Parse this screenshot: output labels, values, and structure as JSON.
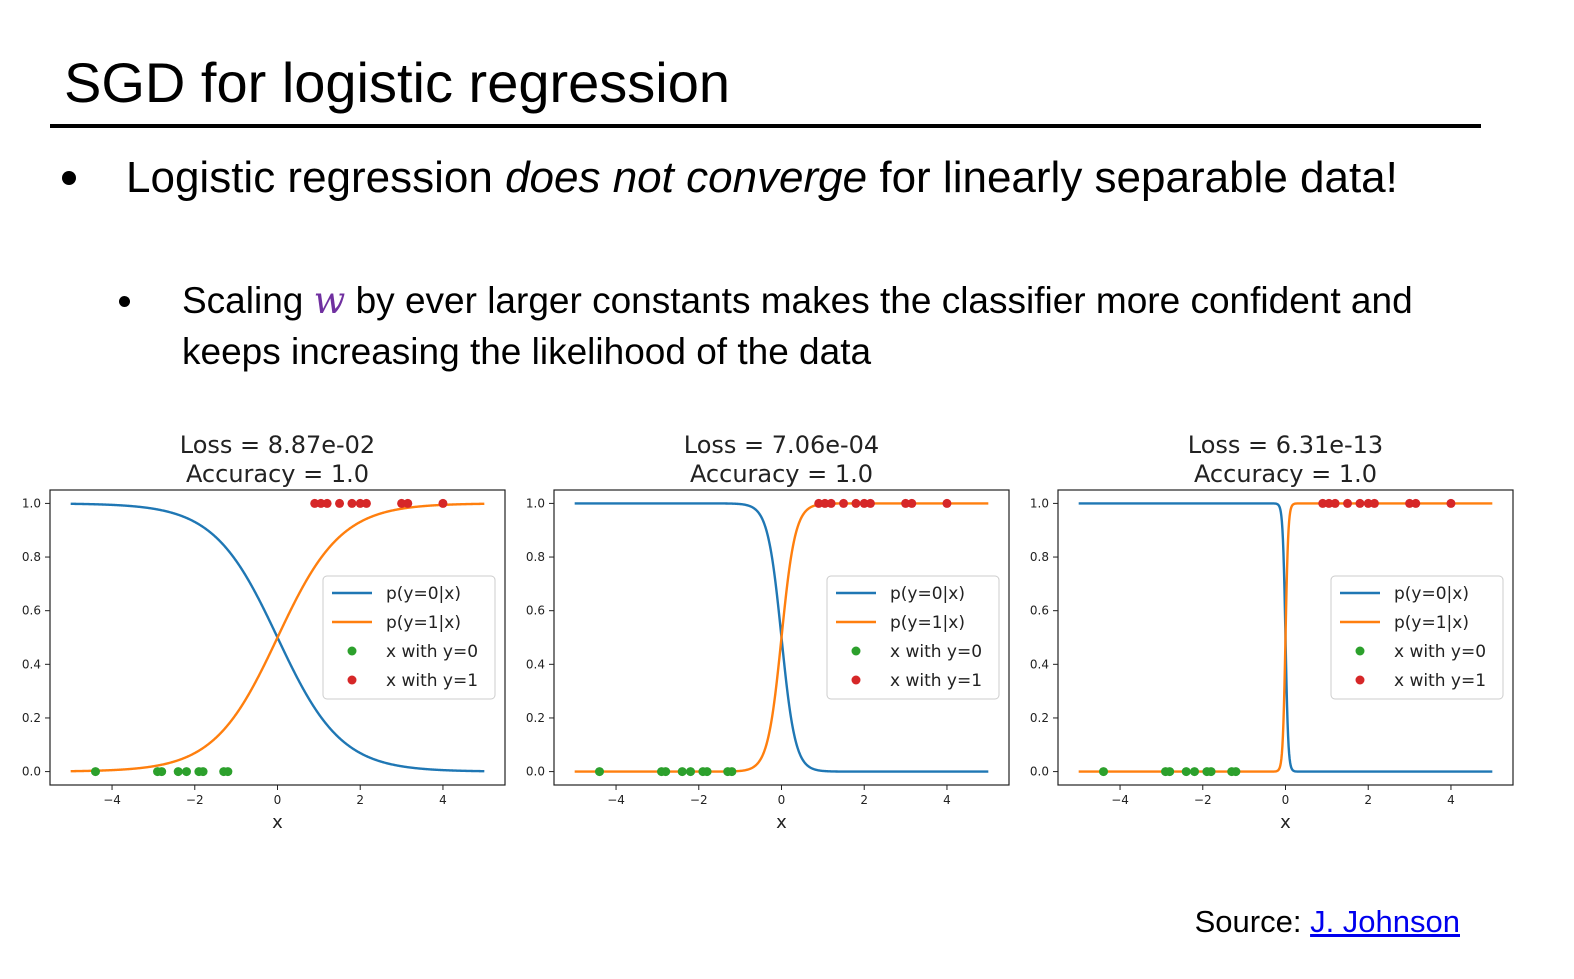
{
  "slide": {
    "title": "SGD for logistic regression",
    "bullet_1": {
      "before": "Logistic regression ",
      "emphasis": "does not converge",
      "after": " for linearly separable data!"
    },
    "bullet_2": {
      "before": "Scaling ",
      "variable": "w",
      "after": " by ever larger constants makes the classifier more confident and keeps increasing the likelihood of the data"
    },
    "source_label": "Source: ",
    "source_link_text": "J. Johnson"
  },
  "colors": {
    "series_p0": "#1f77b4",
    "series_p1": "#ff7f0e",
    "points_y0": "#2ca02c",
    "points_y1": "#d62728",
    "variable_w": "#7030a0",
    "link": "#0000ee"
  },
  "chart_data": [
    {
      "type": "line",
      "title": "Loss = 8.87e-02",
      "subtitle": "Accuracy = 1.0",
      "xlabel": "x",
      "ylabel": "",
      "xlim": [
        -5.5,
        5.5
      ],
      "ylim": [
        -0.05,
        1.05
      ],
      "xticks": [
        -4,
        -2,
        0,
        2,
        4
      ],
      "yticks": [
        0.0,
        0.2,
        0.4,
        0.6,
        0.8,
        1.0
      ],
      "xtick_labels": [
        "−4",
        "−2",
        "0",
        "2",
        "4"
      ],
      "ytick_labels": [
        "0.0",
        "0.2",
        "0.4",
        "0.6",
        "0.8",
        "1.0"
      ],
      "logistic_slope": 1.3,
      "curve_x_range": [
        -5,
        5
      ],
      "grid": false,
      "legend_position": "center-right",
      "series": [
        {
          "name": "p(y=0|x)",
          "kind": "line",
          "function": "1 - sigmoid(1.3 * x)"
        },
        {
          "name": "p(y=1|x)",
          "kind": "line",
          "function": "sigmoid(1.3 * x)"
        },
        {
          "name": "x with y=0",
          "kind": "scatter",
          "y": 0,
          "x": [
            -4.4,
            -2.9,
            -2.8,
            -2.4,
            -2.2,
            -1.9,
            -1.8,
            -1.3,
            -1.2
          ]
        },
        {
          "name": "x with y=1",
          "kind": "scatter",
          "y": 1,
          "x": [
            0.9,
            1.05,
            1.2,
            1.5,
            1.8,
            2.0,
            2.15,
            3.0,
            3.15,
            4.0
          ]
        }
      ]
    },
    {
      "type": "line",
      "title": "Loss = 7.06e-04",
      "subtitle": "Accuracy = 1.0",
      "xlabel": "x",
      "ylabel": "",
      "xlim": [
        -5.5,
        5.5
      ],
      "ylim": [
        -0.05,
        1.05
      ],
      "xticks": [
        -4,
        -2,
        0,
        2,
        4
      ],
      "yticks": [
        0.0,
        0.2,
        0.4,
        0.6,
        0.8,
        1.0
      ],
      "xtick_labels": [
        "−4",
        "−2",
        "0",
        "2",
        "4"
      ],
      "ytick_labels": [
        "0.0",
        "0.2",
        "0.4",
        "0.6",
        "0.8",
        "1.0"
      ],
      "logistic_slope": 6.0,
      "curve_x_range": [
        -5,
        5
      ],
      "grid": false,
      "legend_position": "center-right",
      "series": [
        {
          "name": "p(y=0|x)",
          "kind": "line",
          "function": "1 - sigmoid(6 * x)"
        },
        {
          "name": "p(y=1|x)",
          "kind": "line",
          "function": "sigmoid(6 * x)"
        },
        {
          "name": "x with y=0",
          "kind": "scatter",
          "y": 0,
          "x": [
            -4.4,
            -2.9,
            -2.8,
            -2.4,
            -2.2,
            -1.9,
            -1.8,
            -1.3,
            -1.2
          ]
        },
        {
          "name": "x with y=1",
          "kind": "scatter",
          "y": 1,
          "x": [
            0.9,
            1.05,
            1.2,
            1.5,
            1.8,
            2.0,
            2.15,
            3.0,
            3.15,
            4.0
          ]
        }
      ]
    },
    {
      "type": "line",
      "title": "Loss = 6.31e-13",
      "subtitle": "Accuracy = 1.0",
      "xlabel": "x",
      "ylabel": "",
      "xlim": [
        -5.5,
        5.5
      ],
      "ylim": [
        -0.05,
        1.05
      ],
      "xticks": [
        -4,
        -2,
        0,
        2,
        4
      ],
      "yticks": [
        0.0,
        0.2,
        0.4,
        0.6,
        0.8,
        1.0
      ],
      "xtick_labels": [
        "−4",
        "−2",
        "0",
        "2",
        "4"
      ],
      "ytick_labels": [
        "0.0",
        "0.2",
        "0.4",
        "0.6",
        "0.8",
        "1.0"
      ],
      "logistic_slope": 30.0,
      "curve_x_range": [
        -5,
        5
      ],
      "grid": false,
      "legend_position": "center-right",
      "series": [
        {
          "name": "p(y=0|x)",
          "kind": "line",
          "function": "1 - sigmoid(30 * x)"
        },
        {
          "name": "p(y=1|x)",
          "kind": "line",
          "function": "sigmoid(30 * x)"
        },
        {
          "name": "x with y=0",
          "kind": "scatter",
          "y": 0,
          "x": [
            -4.4,
            -2.9,
            -2.8,
            -2.4,
            -2.2,
            -1.9,
            -1.8,
            -1.3,
            -1.2
          ]
        },
        {
          "name": "x with y=1",
          "kind": "scatter",
          "y": 1,
          "x": [
            0.9,
            1.05,
            1.2,
            1.5,
            1.8,
            2.0,
            2.15,
            3.0,
            3.15,
            4.0
          ]
        }
      ]
    }
  ]
}
